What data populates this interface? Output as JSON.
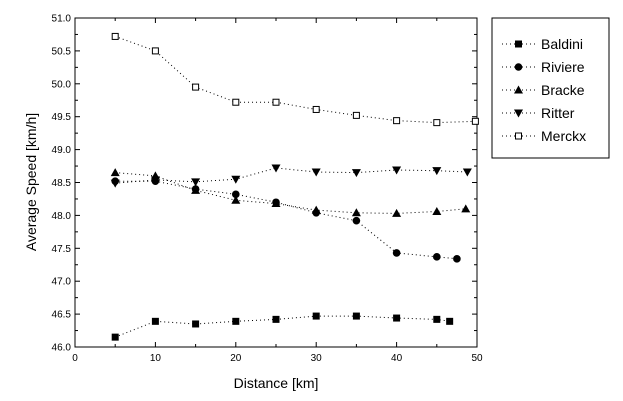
{
  "chart_data": {
    "type": "line",
    "title": "",
    "xlabel": "Distance [km]",
    "ylabel": "Average Speed [km/h]",
    "xlim": [
      0,
      50
    ],
    "ylim": [
      46.0,
      51.0
    ],
    "xticks": [
      "0",
      "10",
      "20",
      "30",
      "40",
      "50"
    ],
    "yticks": [
      "46.0",
      "46.5",
      "47.0",
      "47.5",
      "48.0",
      "48.5",
      "49.0",
      "49.5",
      "50.0",
      "50.5",
      "51.0"
    ],
    "grid": false,
    "legend_position": "outside-right",
    "line_style": "dotted",
    "series": [
      {
        "name": "Baldini",
        "marker": "square-filled",
        "x": [
          5,
          10,
          15,
          20,
          25,
          30,
          35,
          40,
          45,
          46.6
        ],
        "y": [
          46.15,
          46.39,
          46.35,
          46.39,
          46.42,
          46.47,
          46.47,
          46.44,
          46.42,
          46.39
        ]
      },
      {
        "name": "Riviere",
        "marker": "circle-filled",
        "x": [
          5,
          10,
          15,
          20,
          25,
          30,
          35,
          40,
          45,
          47.5
        ],
        "y": [
          48.52,
          48.52,
          48.4,
          48.32,
          48.2,
          48.04,
          47.92,
          47.43,
          47.37,
          47.34
        ]
      },
      {
        "name": "Bracke",
        "marker": "triangle-up-filled",
        "x": [
          5,
          10,
          15,
          20,
          25,
          30,
          35,
          40,
          45,
          48.6
        ],
        "y": [
          48.65,
          48.6,
          48.38,
          48.23,
          48.18,
          48.08,
          48.04,
          48.03,
          48.06,
          48.1
        ]
      },
      {
        "name": "Ritter",
        "marker": "triangle-down-filled",
        "x": [
          5,
          10,
          15,
          20,
          25,
          30,
          35,
          40,
          45,
          48.8
        ],
        "y": [
          48.49,
          48.54,
          48.51,
          48.55,
          48.72,
          48.66,
          48.65,
          48.69,
          48.68,
          48.66
        ]
      },
      {
        "name": "Merckx",
        "marker": "square-open",
        "x": [
          5,
          10,
          15,
          20,
          25,
          30,
          35,
          40,
          45,
          49.8
        ],
        "y": [
          50.72,
          50.5,
          49.95,
          49.72,
          49.72,
          49.61,
          49.52,
          49.44,
          49.41,
          49.43
        ]
      }
    ]
  }
}
